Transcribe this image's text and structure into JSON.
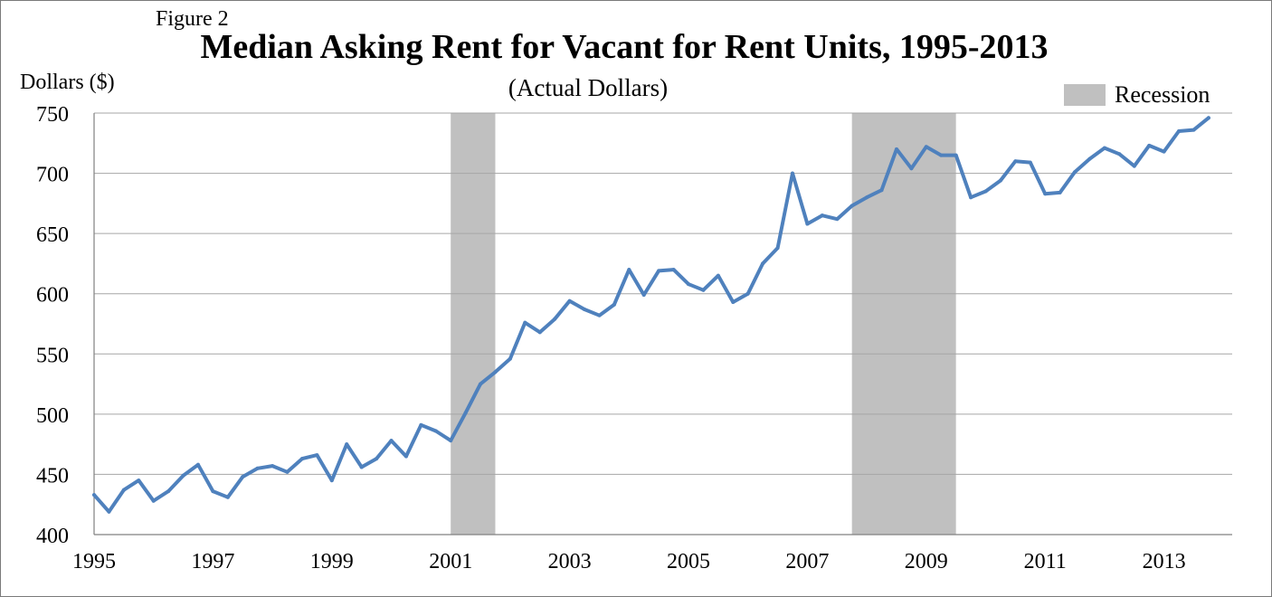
{
  "figure_label": "Figure 2",
  "chart_data": {
    "type": "line",
    "title": "Median Asking Rent for Vacant for Rent Units, 1995-2013",
    "subtitle": "(Actual Dollars)",
    "ylabel": "Dollars ($)",
    "xlabel": "",
    "ylim": [
      400,
      750
    ],
    "yticks": [
      400,
      450,
      500,
      550,
      600,
      650,
      700,
      750
    ],
    "xlim": [
      1995,
      2014
    ],
    "xticks": [
      1995,
      1997,
      1999,
      2001,
      2003,
      2005,
      2007,
      2009,
      2011,
      2013
    ],
    "grid": "horizontal",
    "legend": {
      "label": "Recession",
      "color": "#c0c0c0",
      "position": "top-right"
    },
    "recessions": [
      [
        2001.0,
        2001.75
      ],
      [
        2007.75,
        2009.5
      ]
    ],
    "series": [
      {
        "color": "#4f81bd",
        "x": [
          1995.0,
          1995.25,
          1995.5,
          1995.75,
          1996.0,
          1996.25,
          1996.5,
          1996.75,
          1997.0,
          1997.25,
          1997.5,
          1997.75,
          1998.0,
          1998.25,
          1998.5,
          1998.75,
          1999.0,
          1999.25,
          1999.5,
          1999.75,
          2000.0,
          2000.25,
          2000.5,
          2000.75,
          2001.0,
          2001.25,
          2001.5,
          2001.75,
          2002.0,
          2002.25,
          2002.5,
          2002.75,
          2003.0,
          2003.25,
          2003.5,
          2003.75,
          2004.0,
          2004.25,
          2004.5,
          2004.75,
          2005.0,
          2005.25,
          2005.5,
          2005.75,
          2006.0,
          2006.25,
          2006.5,
          2006.75,
          2007.0,
          2007.25,
          2007.5,
          2007.75,
          2008.0,
          2008.25,
          2008.5,
          2008.75,
          2009.0,
          2009.25,
          2009.5,
          2009.75,
          2010.0,
          2010.25,
          2010.5,
          2010.75,
          2011.0,
          2011.25,
          2011.5,
          2011.75,
          2012.0,
          2012.25,
          2012.5,
          2012.75,
          2013.0,
          2013.25,
          2013.5,
          2013.75
        ],
        "values": [
          433,
          419,
          437,
          445,
          428,
          436,
          449,
          458,
          436,
          431,
          448,
          455,
          457,
          452,
          463,
          466,
          445,
          475,
          456,
          463,
          478,
          465,
          491,
          486,
          478,
          501,
          525,
          535,
          546,
          576,
          568,
          579,
          594,
          587,
          582,
          591,
          620,
          599,
          619,
          620,
          608,
          603,
          615,
          593,
          600,
          625,
          638,
          700,
          658,
          665,
          662,
          673,
          680,
          686,
          720,
          704,
          722,
          715,
          715,
          680,
          685,
          694,
          710,
          709,
          683,
          684,
          701,
          712,
          721,
          716,
          706,
          723,
          718,
          735,
          736,
          746
        ]
      }
    ]
  }
}
